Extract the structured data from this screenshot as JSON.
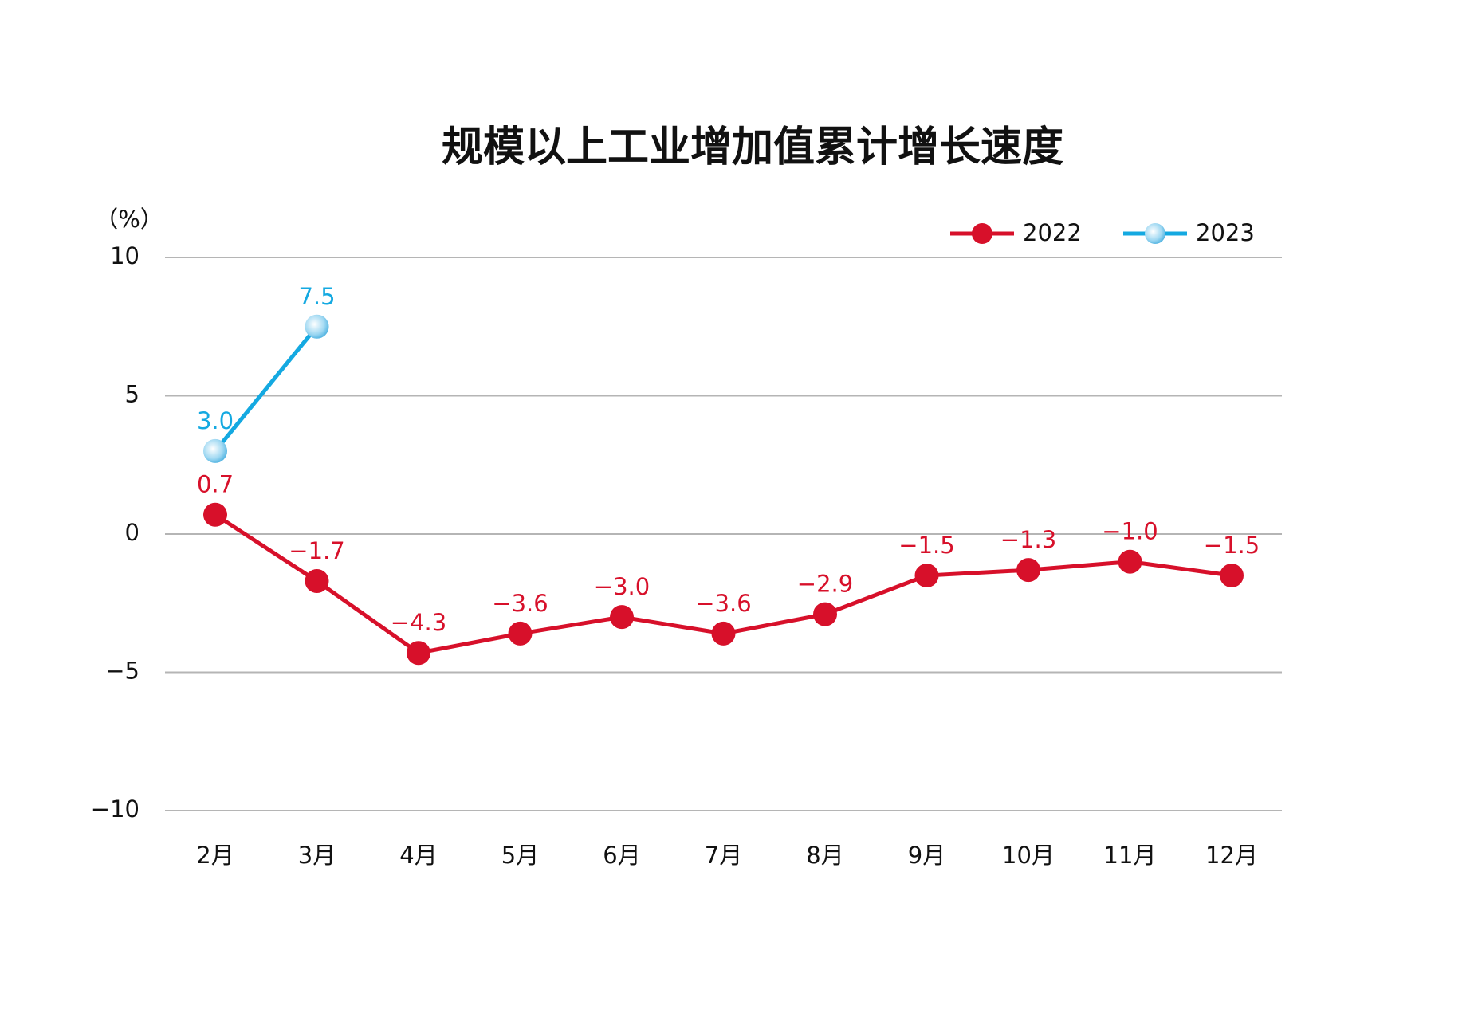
{
  "chart_data": {
    "type": "line",
    "title": "规模以上工业增加值累计增长速度",
    "y_label": "（%）",
    "categories": [
      "2月",
      "3月",
      "4月",
      "5月",
      "6月",
      "7月",
      "8月",
      "9月",
      "10月",
      "11月",
      "12月"
    ],
    "series": [
      {
        "name": "2022",
        "color": "#d7102a",
        "values": [
          0.7,
          -1.7,
          -4.3,
          -3.6,
          -3.0,
          -3.6,
          -2.9,
          -1.5,
          -1.3,
          -1.0,
          -1.5
        ],
        "value_labels": [
          "0.7",
          "−1.7",
          "−4.3",
          "−3.6",
          "−3.0",
          "−3.6",
          "−2.9",
          "−1.5",
          "−1.3",
          "−1.0",
          "−1.5"
        ]
      },
      {
        "name": "2023",
        "color": "#14a9e1",
        "values": [
          3.0,
          7.5,
          null,
          null,
          null,
          null,
          null,
          null,
          null,
          null,
          null
        ],
        "value_labels": [
          "3.0",
          "7.5",
          null,
          null,
          null,
          null,
          null,
          null,
          null,
          null,
          null
        ]
      }
    ],
    "ylim": [
      -10,
      10
    ],
    "yticks": [
      {
        "value": -10,
        "label": "−10"
      },
      {
        "value": -5,
        "label": "−5"
      },
      0,
      5,
      10
    ],
    "grid": true,
    "legend": "top-right"
  }
}
